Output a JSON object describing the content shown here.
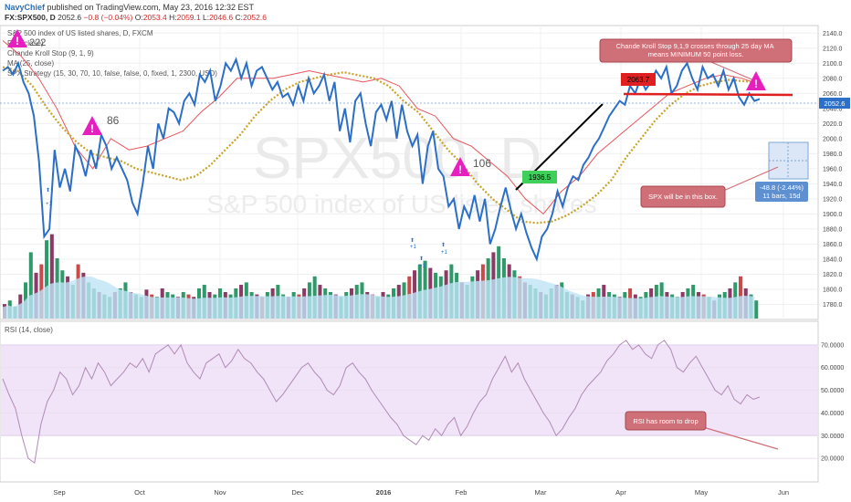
{
  "header": {
    "author": "NavyChief",
    "published": " published on TradingView.com, May 23, 2016 12:32 EST",
    "symbol": "FX:SPX500, D",
    "last": "2052.6",
    "change": "−0.8 (−0.04%)",
    "o_label": "O:",
    "o_val": "2053.4",
    "h_label": "H:",
    "h_val": "2059.1",
    "l_label": "L:",
    "l_val": "2046.6",
    "c_label": "C:",
    "c_val": "2052.6"
  },
  "legend": {
    "title": "S&P 500 index of US listed shares, D, FXCM",
    "line2": "RSI (close)",
    "line3": "Chande Kroll Stop (9, 1, 9)",
    "line4": "MA (25, close)",
    "line5": "SPX Strategy (15, 30, 70, 10, false, false, 0, fixed, 1, 2300, USD)"
  },
  "watermark": {
    "symbol": "SPX500, D",
    "name": "S&P 500 index of US listed shares"
  },
  "annotations": {
    "chande_note": "Chande Kroll Stop 9,1,9 crosses through 25 day MA means MINIMUM 50 point loss.",
    "spx_box_note": "SPX will be in this box.",
    "rsi_note": "RSI has room to drop",
    "measure_line1": "-48.8 (-2.44%)",
    "measure_line2": "11 bars, 15d",
    "price_tag_red": "2063.7",
    "price_tag_green": "1936.5",
    "last_price_tag": "2052.6",
    "warn_labels": [
      "222",
      "86",
      "106"
    ],
    "signal_labels": [
      "+1",
      "+1",
      "+1",
      "+1"
    ]
  },
  "rsi_panel": {
    "title": "RSI (14, close)"
  },
  "colors": {
    "price": "#2b6fc8",
    "ma": "#c9a227",
    "chande": "#e8555b",
    "rsi_band": "#f1e3f8",
    "rsi_line": "#b08ab5",
    "vol_up": "#2e9a6a",
    "vol_down": "#8a3a64",
    "vol_red": "#c94a4a",
    "warn": "#e81fbf",
    "note_bg": "#cf6f78"
  },
  "chart_data": [
    {
      "type": "line",
      "title": "S&P 500 index of US listed shares, D, FXCM",
      "x_ticks": [
        "Sep",
        "Oct",
        "Nov",
        "Dec",
        "2016",
        "Feb",
        "Mar",
        "Apr",
        "May",
        "Jun"
      ],
      "y_ticks": [
        1780,
        1800,
        1820,
        1840,
        1860,
        1880,
        1900,
        1920,
        1940,
        1960,
        1980,
        2000,
        2020,
        2040,
        2060,
        2080,
        2100,
        2120,
        2140
      ],
      "ylim": [
        1760,
        2150
      ],
      "series": [
        {
          "values": [
            2090,
            2095,
            2085,
            2100,
            2075,
            2060,
            2030,
            1970,
            1870,
            1880,
            1985,
            1935,
            1960,
            1930,
            1990,
            1975,
            1950,
            1985,
            1960,
            2005,
            1990,
            1960,
            1975,
            1960,
            1945,
            1915,
            1900,
            1940,
            1990,
            1960,
            2020,
            2000,
            2040,
            2035,
            2020,
            2050,
            2060,
            2045,
            2085,
            2075,
            2090,
            2050,
            2070,
            2100,
            2090,
            2105,
            2080,
            2100,
            2070,
            2090,
            2095,
            2080,
            2065,
            2075,
            2055,
            2060,
            2045,
            2070,
            2050,
            2080,
            2060,
            2070,
            2085,
            2050,
            2075,
            2010,
            2040,
            1995,
            2050,
            2060,
            2020,
            1990,
            2035,
            2045,
            2025,
            2050,
            2000,
            2045,
            2010,
            1990,
            2005,
            1940,
            1990,
            2010,
            1960,
            1950,
            1910,
            1920,
            1880,
            1910,
            1895,
            1925,
            1890,
            1920,
            1860,
            1880,
            1910,
            1935,
            1905,
            1880,
            1900,
            1875,
            1855,
            1840,
            1870,
            1880,
            1900,
            1930,
            1910,
            1935,
            1950,
            1945,
            1965,
            1975,
            1990,
            2000,
            2015,
            2030,
            2040,
            2050,
            2045,
            2070,
            2060,
            2080,
            2065,
            2075,
            2090,
            2080,
            2095,
            2060,
            2070,
            2090,
            2100,
            2080,
            2065,
            2095,
            2080,
            2085,
            2070,
            2090,
            2065,
            2080,
            2055,
            2045,
            2060,
            2050,
            2052.6
          ]
        },
        {
          "name": "MA (25, close)",
          "values": [
            2095,
            2090,
            2070,
            2040,
            2015,
            1995,
            1980,
            1975,
            1970,
            1960,
            1955,
            1950,
            1945,
            1950,
            1965,
            1985,
            2005,
            2030,
            2050,
            2065,
            2075,
            2080,
            2085,
            2088,
            2084,
            2080,
            2070,
            2050,
            2035,
            2010,
            1985,
            1965,
            1940,
            1920,
            1905,
            1890,
            1888,
            1890,
            1898,
            1910,
            1925,
            1945,
            1975,
            2000,
            2025,
            2045,
            2060,
            2070,
            2075,
            2078,
            2076,
            2075
          ]
        },
        {
          "name": "Chande Kroll Stop (9, 1, 9)",
          "values": [
            2130,
            2110,
            2080,
            2040,
            1990,
            1960,
            2000,
            1985,
            1990,
            2000,
            2010,
            2035,
            2055,
            2080,
            2080,
            2080,
            2085,
            2090,
            2085,
            2080,
            2075,
            2080,
            2070,
            2040,
            2030,
            2000,
            1990,
            1970,
            1950,
            1920,
            1900,
            1930,
            1950,
            1980,
            2000,
            2020,
            2040,
            2060,
            2070,
            2080,
            2085,
            2080,
            2072
          ]
        }
      ]
    },
    {
      "type": "bar",
      "title": "Volume",
      "values": [
        12,
        15,
        10,
        20,
        30,
        55,
        38,
        45,
        65,
        70,
        50,
        40,
        35,
        28,
        45,
        38,
        30,
        25,
        22,
        20,
        18,
        22,
        25,
        30,
        22,
        20,
        18,
        24,
        20,
        18,
        25,
        22,
        20,
        18,
        22,
        20,
        18,
        25,
        28,
        22,
        20,
        25,
        22,
        20,
        25,
        28,
        30,
        22,
        20,
        18,
        22,
        25,
        28,
        20,
        18,
        22,
        20,
        25,
        30,
        35,
        28,
        25,
        22,
        20,
        18,
        22,
        25,
        28,
        30,
        22,
        20,
        18,
        22,
        20,
        25,
        28,
        30,
        35,
        40,
        45,
        48,
        42,
        38,
        35,
        40,
        45,
        38,
        30,
        28,
        35,
        40,
        45,
        50,
        55,
        60,
        50,
        45,
        40,
        35,
        30,
        28,
        25,
        22,
        20,
        25,
        28,
        30,
        22,
        20,
        18,
        15,
        20,
        22,
        25,
        28,
        22,
        20,
        18,
        22,
        25,
        20,
        18,
        22,
        25,
        28,
        30,
        22,
        20,
        18,
        22,
        25,
        28,
        22,
        20,
        18,
        15,
        20,
        22,
        25,
        30,
        35,
        25,
        20,
        15
      ]
    },
    {
      "type": "line",
      "title": "RSI (14, close)",
      "y_ticks": [
        "20.0000",
        "30.0000",
        "40.0000",
        "50.0000",
        "60.0000",
        "70.0000"
      ],
      "ylim": [
        10,
        80
      ],
      "series": [
        {
          "values": [
            55,
            48,
            42,
            30,
            20,
            18,
            35,
            45,
            50,
            58,
            55,
            48,
            52,
            60,
            55,
            62,
            58,
            52,
            55,
            58,
            62,
            60,
            64,
            58,
            66,
            68,
            70,
            66,
            70,
            62,
            58,
            55,
            62,
            64,
            66,
            60,
            63,
            68,
            64,
            62,
            58,
            55,
            50,
            45,
            48,
            52,
            56,
            60,
            62,
            58,
            55,
            50,
            48,
            52,
            60,
            62,
            58,
            55,
            50,
            46,
            42,
            38,
            35,
            30,
            28,
            26,
            30,
            28,
            33,
            30,
            35,
            38,
            30,
            34,
            40,
            45,
            48,
            55,
            60,
            65,
            58,
            62,
            55,
            50,
            45,
            40,
            36,
            30,
            33,
            38,
            42,
            48,
            52,
            55,
            58,
            63,
            66,
            70,
            72,
            68,
            70,
            66,
            64,
            70,
            72,
            68,
            60,
            58,
            62,
            65,
            60,
            55,
            50,
            48,
            52,
            46,
            44,
            48,
            46,
            47
          ]
        }
      ]
    }
  ]
}
